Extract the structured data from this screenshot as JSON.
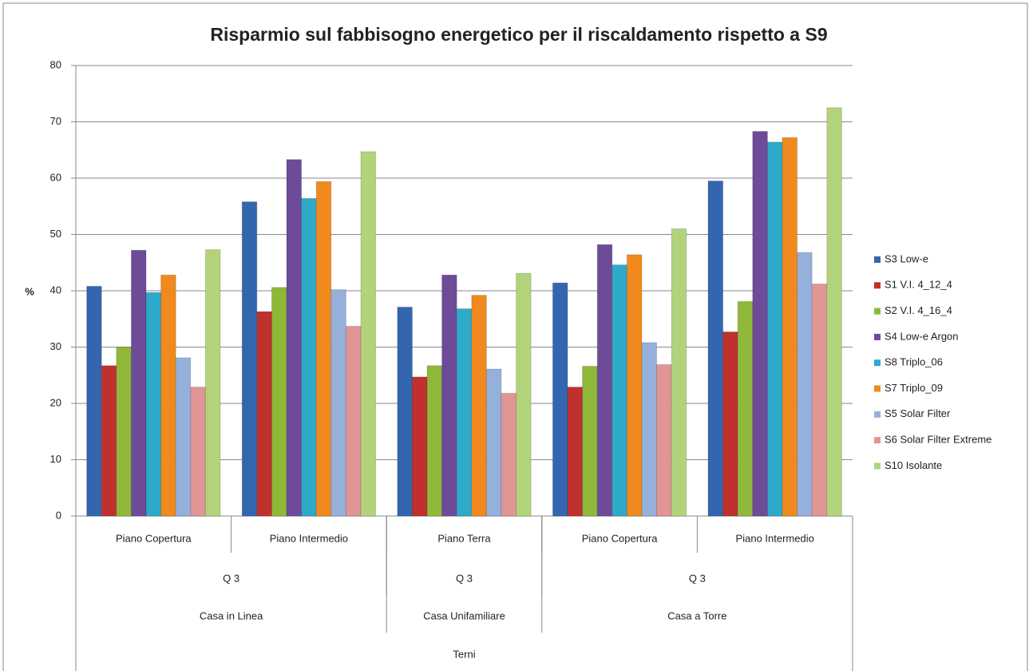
{
  "chart_data": {
    "type": "bar",
    "title": "Risparmio sul fabbisogno energetico per il riscaldamento rispetto a S9",
    "y_label": "%",
    "categories": [
      "Piano Copertura",
      "Piano Intermedio",
      "Piano Terra",
      "Piano Copertura",
      "Piano Intermedio"
    ],
    "category_levels": [
      [
        {
          "label": "Q 3",
          "span": 2
        },
        {
          "label": "Q 3",
          "span": 1
        },
        {
          "label": "Q 3",
          "span": 2
        }
      ],
      [
        {
          "label": "Casa in Linea",
          "span": 2
        },
        {
          "label": "Casa Unifamiliare",
          "span": 1
        },
        {
          "label": "Casa a Torre",
          "span": 2
        }
      ],
      [
        {
          "label": "Terni",
          "span": 5
        }
      ]
    ],
    "series": [
      {
        "name": "S3 Low-e",
        "color": "#3466b0",
        "values": [
          40.8,
          55.8,
          37.1,
          41.4,
          59.5
        ]
      },
      {
        "name": "S1 V.I. 4_12_4",
        "color": "#c0312e",
        "values": [
          26.7,
          36.3,
          24.7,
          22.9,
          32.7
        ]
      },
      {
        "name": "S2 V.I. 4_16_4",
        "color": "#8fb83a",
        "values": [
          30.0,
          40.6,
          26.7,
          26.6,
          38.1
        ]
      },
      {
        "name": "S4 Low-e Argon",
        "color": "#6d4b98",
        "values": [
          47.2,
          63.3,
          42.8,
          48.2,
          68.3
        ]
      },
      {
        "name": "S8 Triplo_06",
        "color": "#2fa9c8",
        "values": [
          39.7,
          56.4,
          36.8,
          44.6,
          66.4
        ]
      },
      {
        "name": "S7 Triplo_09",
        "color": "#f08a1e",
        "values": [
          42.8,
          59.4,
          39.2,
          46.4,
          67.2
        ]
      },
      {
        "name": "S5 Solar Filter",
        "color": "#95b0db",
        "values": [
          28.1,
          40.2,
          26.1,
          30.8,
          46.8
        ]
      },
      {
        "name": "S6 Solar Filter Extreme",
        "color": "#e09695",
        "values": [
          22.9,
          33.7,
          21.8,
          26.9,
          41.2
        ]
      },
      {
        "name": "S10 Isolante",
        "color": "#b3d37a",
        "values": [
          47.3,
          64.7,
          43.1,
          51.0,
          72.5
        ]
      }
    ],
    "ylim": [
      0,
      80
    ],
    "yticks": [
      0,
      10,
      20,
      30,
      40,
      50,
      60,
      70,
      80
    ],
    "grid": true,
    "legend": "right"
  }
}
